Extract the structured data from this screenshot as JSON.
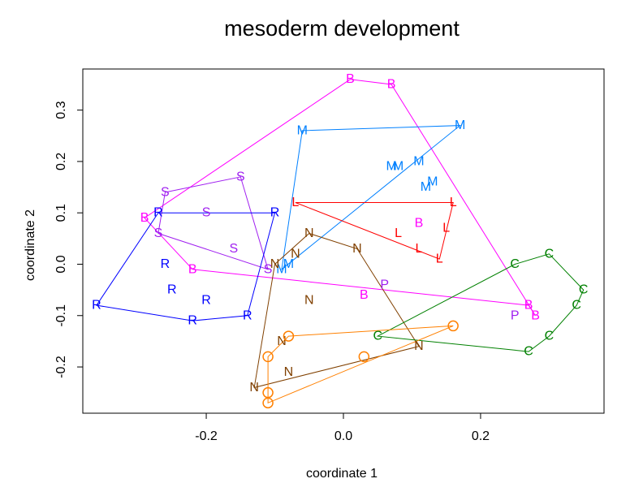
{
  "chart_data": {
    "type": "scatter",
    "title": "mesoderm development",
    "xlabel": "coordinate 1",
    "ylabel": "coordinate 2",
    "xlim": [
      -0.38,
      0.38
    ],
    "ylim": [
      -0.29,
      0.38
    ],
    "xticks": [
      -0.2,
      0.0,
      0.2
    ],
    "xtick_labels": [
      "-0.2",
      "0.0",
      "0.2"
    ],
    "yticks": [
      -0.2,
      -0.1,
      0.0,
      0.1,
      0.2,
      0.3
    ],
    "ytick_labels": [
      "-0.2",
      "-0.1",
      "0.0",
      "0.1",
      "0.2",
      "0.3"
    ],
    "series": [
      {
        "name": "B",
        "marker": "B",
        "color": "#ff00ff",
        "hull": [
          [
            0.01,
            0.36
          ],
          [
            0.07,
            0.35
          ],
          [
            0.28,
            -0.1
          ],
          [
            0.27,
            -0.08
          ],
          [
            -0.22,
            -0.01
          ],
          [
            -0.29,
            0.09
          ]
        ],
        "points": [
          [
            0.01,
            0.36
          ],
          [
            0.07,
            0.35
          ],
          [
            -0.29,
            0.09
          ],
          [
            -0.22,
            -0.01
          ],
          [
            0.03,
            -0.06
          ],
          [
            0.11,
            0.08
          ],
          [
            0.27,
            -0.08
          ],
          [
            0.28,
            -0.1
          ]
        ]
      },
      {
        "name": "M",
        "marker": "M",
        "color": "#0080ff",
        "hull": [
          [
            -0.06,
            0.26
          ],
          [
            0.17,
            0.27
          ],
          [
            -0.09,
            -0.01
          ]
        ],
        "points": [
          [
            -0.06,
            0.26
          ],
          [
            0.17,
            0.27
          ],
          [
            0.07,
            0.19
          ],
          [
            0.08,
            0.19
          ],
          [
            0.11,
            0.2
          ],
          [
            0.12,
            0.15
          ],
          [
            0.13,
            0.16
          ],
          [
            -0.09,
            -0.01
          ],
          [
            -0.08,
            0.0
          ]
        ]
      },
      {
        "name": "S",
        "marker": "S",
        "color": "#a020f0",
        "hull": [
          [
            -0.26,
            0.14
          ],
          [
            -0.15,
            0.17
          ],
          [
            -0.11,
            -0.01
          ],
          [
            -0.27,
            0.06
          ]
        ],
        "points": [
          [
            -0.26,
            0.14
          ],
          [
            -0.15,
            0.17
          ],
          [
            -0.2,
            0.1
          ],
          [
            -0.27,
            0.06
          ],
          [
            -0.16,
            0.03
          ],
          [
            -0.11,
            -0.01
          ]
        ]
      },
      {
        "name": "R",
        "marker": "R",
        "color": "#0000ff",
        "hull": [
          [
            -0.27,
            0.1
          ],
          [
            -0.1,
            0.1
          ],
          [
            -0.14,
            -0.1
          ],
          [
            -0.22,
            -0.11
          ],
          [
            -0.36,
            -0.08
          ]
        ],
        "points": [
          [
            -0.27,
            0.1
          ],
          [
            -0.1,
            0.1
          ],
          [
            -0.26,
            0.0
          ],
          [
            -0.25,
            -0.05
          ],
          [
            -0.2,
            -0.07
          ],
          [
            -0.36,
            -0.08
          ],
          [
            -0.22,
            -0.11
          ],
          [
            -0.14,
            -0.1
          ]
        ]
      },
      {
        "name": "L",
        "marker": "L",
        "color": "#ff0000",
        "hull": [
          [
            -0.07,
            0.12
          ],
          [
            0.16,
            0.12
          ],
          [
            0.14,
            0.01
          ]
        ],
        "points": [
          [
            -0.07,
            0.12
          ],
          [
            0.16,
            0.12
          ],
          [
            0.15,
            0.07
          ],
          [
            0.08,
            0.06
          ],
          [
            0.11,
            0.03
          ],
          [
            0.14,
            0.01
          ]
        ]
      },
      {
        "name": "N",
        "marker": "N",
        "color": "#804000",
        "hull": [
          [
            -0.05,
            0.06
          ],
          [
            0.02,
            0.03
          ],
          [
            0.11,
            -0.16
          ],
          [
            -0.13,
            -0.24
          ],
          [
            -0.1,
            0.0
          ]
        ],
        "points": [
          [
            -0.05,
            0.06
          ],
          [
            0.02,
            0.03
          ],
          [
            -0.1,
            0.0
          ],
          [
            -0.07,
            0.02
          ],
          [
            -0.05,
            -0.07
          ],
          [
            -0.09,
            -0.15
          ],
          [
            -0.08,
            -0.21
          ],
          [
            0.11,
            -0.16
          ],
          [
            -0.13,
            -0.24
          ]
        ]
      },
      {
        "name": "P",
        "marker": "P",
        "color": "#a020f0",
        "hull": [],
        "points": [
          [
            0.06,
            -0.04
          ],
          [
            0.25,
            -0.1
          ]
        ]
      },
      {
        "name": "C",
        "marker": "C",
        "color": "#008000",
        "hull": [
          [
            0.3,
            0.02
          ],
          [
            0.35,
            -0.05
          ],
          [
            0.34,
            -0.08
          ],
          [
            0.3,
            -0.14
          ],
          [
            0.27,
            -0.17
          ],
          [
            0.05,
            -0.14
          ],
          [
            0.25,
            0.0
          ]
        ],
        "points": [
          [
            0.3,
            0.02
          ],
          [
            0.25,
            0.0
          ],
          [
            0.35,
            -0.05
          ],
          [
            0.34,
            -0.08
          ],
          [
            0.3,
            -0.14
          ],
          [
            0.27,
            -0.17
          ],
          [
            0.05,
            -0.14
          ]
        ]
      },
      {
        "name": "O",
        "marker": "O",
        "color": "#ff8000",
        "hull": [
          [
            -0.08,
            -0.14
          ],
          [
            0.16,
            -0.12
          ],
          [
            -0.11,
            -0.27
          ],
          [
            -0.11,
            -0.25
          ],
          [
            -0.11,
            -0.18
          ]
        ],
        "points": [
          [
            -0.08,
            -0.14
          ],
          [
            0.16,
            -0.12
          ],
          [
            0.03,
            -0.18
          ],
          [
            -0.11,
            -0.18
          ],
          [
            -0.11,
            -0.25
          ],
          [
            -0.11,
            -0.27
          ]
        ]
      }
    ]
  }
}
